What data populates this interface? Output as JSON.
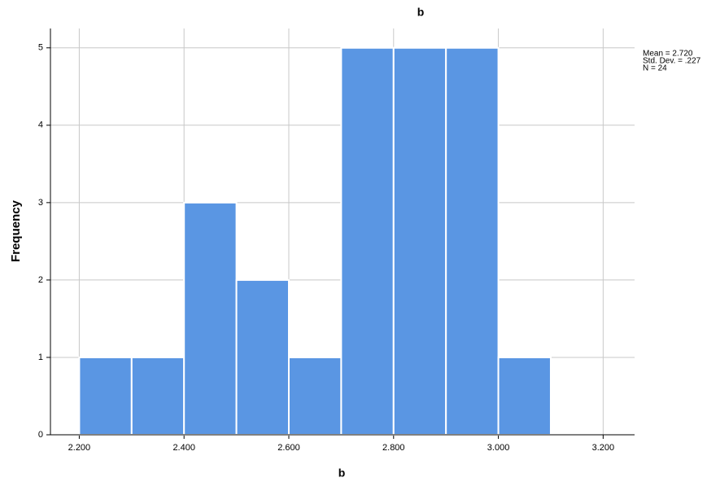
{
  "chart_data": {
    "type": "histogram",
    "title": "b",
    "x_label": "b",
    "y_label": "Frequency",
    "bins": [
      2.2,
      2.3,
      2.4,
      2.5,
      2.6,
      2.7,
      2.8,
      2.9,
      3.0,
      3.1
    ],
    "counts": [
      1,
      1,
      3,
      2,
      1,
      5,
      5,
      5,
      1
    ],
    "color": "#5a96e3",
    "xlim": [
      2.145,
      3.26
    ],
    "xticks": [
      {
        "value": 2.2,
        "label": "2.200"
      },
      {
        "value": 2.4,
        "label": "2.400"
      },
      {
        "value": 2.6,
        "label": "2.600"
      },
      {
        "value": 2.8,
        "label": "2.800"
      },
      {
        "value": 3.0,
        "label": "3.000"
      },
      {
        "value": 3.2,
        "label": "3.200"
      }
    ],
    "ylim": [
      0,
      5.25
    ],
    "yticks": [
      0,
      1,
      2,
      3,
      4,
      5
    ],
    "grid": true,
    "annotations": [
      "Mean = 2.720",
      "Std. Dev. = .227",
      "N = 24"
    ]
  }
}
